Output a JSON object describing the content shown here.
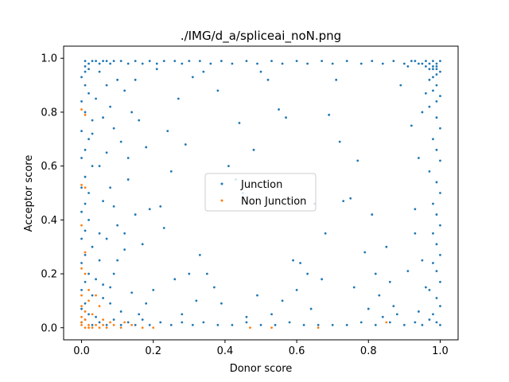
{
  "chart_data": {
    "type": "scatter",
    "title": "./IMG/d_a/spliceai_noN.png",
    "xlabel": "Donor score",
    "ylabel": "Acceptor score",
    "xlim": [
      -0.05,
      1.05
    ],
    "ylim": [
      -0.045,
      1.045
    ],
    "xticks": [
      0.0,
      0.2,
      0.4,
      0.6,
      0.8,
      1.0
    ],
    "yticks": [
      0.0,
      0.2,
      0.4,
      0.6,
      0.8,
      1.0
    ],
    "xtick_labels": [
      "0.0",
      "0.2",
      "0.4",
      "0.6",
      "0.8",
      "1.0"
    ],
    "ytick_labels": [
      "0.0",
      "0.2",
      "0.4",
      "0.6",
      "0.8",
      "1.0"
    ],
    "grid": false,
    "legend_position": "center",
    "series": [
      {
        "name": "Junction",
        "color": "#1f77b4",
        "points": [
          [
            0.01,
            0.99
          ],
          [
            0.02,
            0.98
          ],
          [
            0.03,
            0.99
          ],
          [
            0.01,
            0.97
          ],
          [
            0.02,
            0.96
          ],
          [
            0.04,
            0.99
          ],
          [
            0.05,
            0.98
          ],
          [
            0.06,
            0.99
          ],
          [
            0.07,
            0.99
          ],
          [
            0.08,
            0.98
          ],
          [
            0.09,
            0.99
          ],
          [
            0.11,
            0.99
          ],
          [
            0.13,
            0.98
          ],
          [
            0.15,
            0.99
          ],
          [
            0.17,
            0.98
          ],
          [
            0.19,
            0.99
          ],
          [
            0.21,
            0.98
          ],
          [
            0.23,
            0.99
          ],
          [
            0.26,
            0.99
          ],
          [
            0.28,
            0.98
          ],
          [
            0.3,
            0.99
          ],
          [
            0.33,
            0.99
          ],
          [
            0.36,
            0.98
          ],
          [
            0.39,
            0.99
          ],
          [
            0.42,
            0.98
          ],
          [
            0.46,
            0.99
          ],
          [
            0.49,
            0.98
          ],
          [
            0.53,
            0.99
          ],
          [
            0.56,
            0.98
          ],
          [
            0.6,
            0.99
          ],
          [
            0.63,
            0.98
          ],
          [
            0.67,
            0.99
          ],
          [
            0.7,
            0.98
          ],
          [
            0.74,
            0.99
          ],
          [
            0.78,
            0.98
          ],
          [
            0.81,
            0.99
          ],
          [
            0.84,
            0.98
          ],
          [
            0.87,
            0.99
          ],
          [
            0.9,
            0.98
          ],
          [
            0.92,
            0.99
          ],
          [
            0.94,
            0.98
          ],
          [
            0.96,
            0.99
          ],
          [
            0.97,
            0.98
          ],
          [
            0.98,
            0.99
          ],
          [
            0.99,
            0.98
          ],
          [
            1.0,
            0.99
          ],
          [
            0.99,
            0.97
          ],
          [
            0.98,
            0.96
          ],
          [
            1.0,
            0.95
          ],
          [
            0.99,
            0.94
          ],
          [
            0.01,
            0.95
          ],
          [
            0.0,
            0.93
          ],
          [
            0.01,
            0.9
          ],
          [
            0.02,
            0.87
          ],
          [
            0.0,
            0.84
          ],
          [
            0.01,
            0.8
          ],
          [
            0.03,
            0.77
          ],
          [
            0.0,
            0.73
          ],
          [
            0.02,
            0.7
          ],
          [
            0.01,
            0.66
          ],
          [
            0.0,
            0.63
          ],
          [
            0.03,
            0.6
          ],
          [
            0.01,
            0.56
          ],
          [
            0.0,
            0.52
          ],
          [
            0.02,
            0.5
          ],
          [
            0.01,
            0.46
          ],
          [
            0.0,
            0.43
          ],
          [
            0.02,
            0.4
          ],
          [
            0.01,
            0.36
          ],
          [
            0.0,
            0.33
          ],
          [
            0.03,
            0.3
          ],
          [
            0.01,
            0.27
          ],
          [
            0.0,
            0.24
          ],
          [
            0.02,
            0.2
          ],
          [
            0.01,
            0.17
          ],
          [
            0.0,
            0.14
          ],
          [
            0.03,
            0.12
          ],
          [
            0.01,
            0.09
          ],
          [
            0.0,
            0.07
          ],
          [
            0.02,
            0.05
          ],
          [
            0.01,
            0.03
          ],
          [
            0.0,
            0.02
          ],
          [
            0.03,
            0.01
          ],
          [
            0.05,
            0.02
          ],
          [
            0.07,
            0.01
          ],
          [
            0.09,
            0.03
          ],
          [
            0.11,
            0.01
          ],
          [
            0.13,
            0.02
          ],
          [
            0.15,
            0.01
          ],
          [
            0.17,
            0.03
          ],
          [
            0.19,
            0.01
          ],
          [
            0.22,
            0.02
          ],
          [
            0.25,
            0.01
          ],
          [
            0.28,
            0.02
          ],
          [
            0.31,
            0.01
          ],
          [
            0.34,
            0.02
          ],
          [
            0.38,
            0.01
          ],
          [
            0.42,
            0.01
          ],
          [
            0.46,
            0.02
          ],
          [
            0.5,
            0.01
          ],
          [
            0.54,
            0.01
          ],
          [
            0.58,
            0.02
          ],
          [
            0.62,
            0.01
          ],
          [
            0.66,
            0.01
          ],
          [
            0.7,
            0.01
          ],
          [
            0.74,
            0.01
          ],
          [
            0.78,
            0.02
          ],
          [
            0.82,
            0.01
          ],
          [
            0.86,
            0.02
          ],
          [
            0.9,
            0.01
          ],
          [
            0.93,
            0.02
          ],
          [
            0.95,
            0.01
          ],
          [
            0.97,
            0.03
          ],
          [
            0.99,
            0.02
          ],
          [
            1.0,
            0.01
          ],
          [
            0.98,
            0.05
          ],
          [
            1.0,
            0.08
          ],
          [
            0.99,
            0.11
          ],
          [
            0.97,
            0.14
          ],
          [
            1.0,
            0.17
          ],
          [
            0.99,
            0.21
          ],
          [
            0.98,
            0.24
          ],
          [
            1.0,
            0.27
          ],
          [
            0.99,
            0.31
          ],
          [
            0.98,
            0.35
          ],
          [
            1.0,
            0.38
          ],
          [
            0.99,
            0.42
          ],
          [
            0.98,
            0.46
          ],
          [
            1.0,
            0.5
          ],
          [
            0.99,
            0.54
          ],
          [
            0.97,
            0.58
          ],
          [
            1.0,
            0.62
          ],
          [
            0.99,
            0.66
          ],
          [
            0.98,
            0.7
          ],
          [
            1.0,
            0.74
          ],
          [
            0.99,
            0.78
          ],
          [
            0.97,
            0.82
          ],
          [
            1.0,
            0.86
          ],
          [
            0.99,
            0.9
          ],
          [
            0.98,
            0.93
          ],
          [
            0.05,
            0.95
          ],
          [
            0.07,
            0.9
          ],
          [
            0.04,
            0.85
          ],
          [
            0.08,
            0.82
          ],
          [
            0.06,
            0.78
          ],
          [
            0.1,
            0.92
          ],
          [
            0.12,
            0.88
          ],
          [
            0.09,
            0.74
          ],
          [
            0.14,
            0.8
          ],
          [
            0.11,
            0.69
          ],
          [
            0.07,
            0.65
          ],
          [
            0.05,
            0.6
          ],
          [
            0.13,
            0.55
          ],
          [
            0.08,
            0.52
          ],
          [
            0.06,
            0.47
          ],
          [
            0.15,
            0.42
          ],
          [
            0.1,
            0.38
          ],
          [
            0.07,
            0.33
          ],
          [
            0.12,
            0.29
          ],
          [
            0.05,
            0.25
          ],
          [
            0.09,
            0.2
          ],
          [
            0.06,
            0.16
          ],
          [
            0.14,
            0.13
          ],
          [
            0.08,
            0.09
          ],
          [
            0.11,
            0.06
          ],
          [
            0.04,
            0.04
          ],
          [
            0.16,
            0.05
          ],
          [
            0.18,
            0.09
          ],
          [
            0.2,
            0.14
          ],
          [
            0.17,
            0.31
          ],
          [
            0.22,
            0.45
          ],
          [
            0.24,
            0.73
          ],
          [
            0.27,
            0.85
          ],
          [
            0.29,
            0.68
          ],
          [
            0.21,
            0.96
          ],
          [
            0.31,
            0.93
          ],
          [
            0.33,
            0.27
          ],
          [
            0.35,
            0.2
          ],
          [
            0.37,
            0.15
          ],
          [
            0.26,
            0.18
          ],
          [
            0.39,
            0.09
          ],
          [
            0.43,
            0.55
          ],
          [
            0.45,
            0.5
          ],
          [
            0.48,
            0.66
          ],
          [
            0.5,
            0.95
          ],
          [
            0.52,
            0.92
          ],
          [
            0.55,
            0.81
          ],
          [
            0.57,
            0.78
          ],
          [
            0.59,
            0.25
          ],
          [
            0.61,
            0.24
          ],
          [
            0.63,
            0.2
          ],
          [
            0.65,
            0.46
          ],
          [
            0.68,
            0.35
          ],
          [
            0.69,
            0.79
          ],
          [
            0.71,
            0.92
          ],
          [
            0.73,
            0.47
          ],
          [
            0.75,
            0.48
          ],
          [
            0.77,
            0.62
          ],
          [
            0.79,
            0.28
          ],
          [
            0.81,
            0.42
          ],
          [
            0.83,
            0.12
          ],
          [
            0.85,
            0.3
          ],
          [
            0.86,
            0.17
          ],
          [
            0.88,
            0.05
          ],
          [
            0.89,
            0.9
          ],
          [
            0.91,
            0.21
          ],
          [
            0.93,
            0.44
          ],
          [
            0.94,
            0.06
          ],
          [
            0.95,
            0.8
          ],
          [
            0.96,
            0.87
          ],
          [
            0.92,
            0.75
          ],
          [
            0.94,
            0.63
          ],
          [
            0.93,
            0.35
          ],
          [
            0.95,
            0.25
          ],
          [
            0.96,
            0.15
          ],
          [
            0.87,
            0.08
          ],
          [
            0.84,
            0.04
          ],
          [
            0.82,
            0.2
          ],
          [
            0.8,
            0.07
          ],
          [
            0.76,
            0.15
          ],
          [
            0.72,
            0.69
          ],
          [
            0.67,
            0.18
          ],
          [
            0.64,
            0.07
          ],
          [
            0.6,
            0.14
          ],
          [
            0.56,
            0.1
          ],
          [
            0.53,
            0.05
          ],
          [
            0.49,
            0.12
          ],
          [
            0.46,
            0.04
          ],
          [
            0.44,
            0.76
          ],
          [
            0.41,
            0.6
          ],
          [
            0.38,
            0.88
          ],
          [
            0.34,
            0.95
          ],
          [
            0.32,
            0.1
          ],
          [
            0.3,
            0.2
          ],
          [
            0.28,
            0.05
          ],
          [
            0.25,
            0.58
          ],
          [
            0.23,
            0.37
          ],
          [
            0.19,
            0.44
          ],
          [
            0.18,
            0.67
          ],
          [
            0.16,
            0.77
          ],
          [
            0.15,
            0.92
          ],
          [
            0.13,
            0.63
          ],
          [
            0.12,
            0.35
          ],
          [
            0.1,
            0.25
          ],
          [
            0.09,
            0.45
          ],
          [
            0.08,
            0.15
          ],
          [
            0.06,
            0.11
          ],
          [
            0.05,
            0.35
          ],
          [
            0.04,
            0.18
          ],
          [
            0.03,
            0.72
          ],
          [
            0.97,
            0.96
          ],
          [
            0.98,
            0.97
          ],
          [
            0.99,
            0.96
          ],
          [
            0.96,
            0.97
          ],
          [
            0.95,
            0.98
          ],
          [
            0.93,
            0.99
          ],
          [
            0.91,
            0.97
          ],
          [
            0.97,
            0.92
          ],
          [
            0.98,
            0.88
          ],
          [
            0.99,
            0.84
          ]
        ]
      },
      {
        "name": "Non Junction",
        "color": "#ff7f0e",
        "points": [
          [
            0.0,
            0.01
          ],
          [
            0.01,
            0.0
          ],
          [
            0.02,
            0.01
          ],
          [
            0.0,
            0.02
          ],
          [
            0.01,
            0.03
          ],
          [
            0.03,
            0.0
          ],
          [
            0.04,
            0.01
          ],
          [
            0.05,
            0.0
          ],
          [
            0.06,
            0.01
          ],
          [
            0.02,
            0.0
          ],
          [
            0.0,
            0.04
          ],
          [
            0.01,
            0.06
          ],
          [
            0.0,
            0.08
          ],
          [
            0.02,
            0.1
          ],
          [
            0.0,
            0.12
          ],
          [
            0.01,
            0.2
          ],
          [
            0.0,
            0.22
          ],
          [
            0.01,
            0.28
          ],
          [
            0.0,
            0.38
          ],
          [
            0.01,
            0.52
          ],
          [
            0.0,
            0.53
          ],
          [
            0.01,
            0.79
          ],
          [
            0.0,
            0.81
          ],
          [
            0.07,
            0.0
          ],
          [
            0.09,
            0.01
          ],
          [
            0.11,
            0.0
          ],
          [
            0.14,
            0.01
          ],
          [
            0.17,
            0.0
          ],
          [
            0.2,
            0.0
          ],
          [
            0.47,
            0.0
          ],
          [
            0.53,
            0.0
          ],
          [
            0.66,
            0.0
          ],
          [
            0.85,
            0.02
          ],
          [
            0.03,
            0.05
          ],
          [
            0.05,
            0.08
          ],
          [
            0.04,
            0.12
          ],
          [
            0.02,
            0.14
          ],
          [
            0.06,
            0.03
          ],
          [
            0.08,
            0.02
          ],
          [
            0.12,
            0.02
          ]
        ]
      }
    ]
  }
}
